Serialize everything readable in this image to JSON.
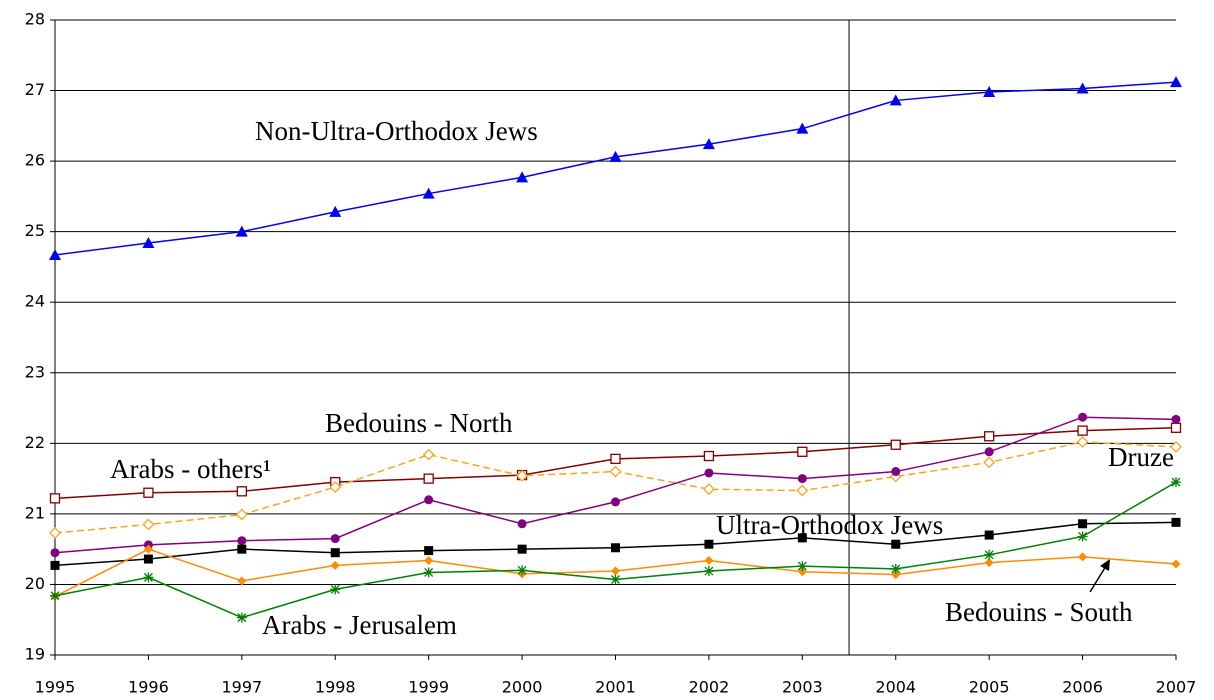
{
  "chart_data": {
    "type": "line",
    "x": [
      1995,
      1996,
      1997,
      1998,
      1999,
      2000,
      2001,
      2002,
      2003,
      2004,
      2005,
      2006,
      2007
    ],
    "xlim": [
      1995,
      2007
    ],
    "xticks": [
      1995,
      1996,
      1997,
      1998,
      1999,
      2000,
      2001,
      2002,
      2003,
      2004,
      2005,
      2006,
      2007
    ],
    "ylim": [
      19,
      28
    ],
    "yticks": [
      19,
      20,
      21,
      22,
      23,
      24,
      25,
      26,
      27,
      28
    ],
    "grid": true,
    "vline": 2003.5,
    "series": [
      {
        "name": "Non-Ultra-Orthodox Jews",
        "color": "#0000ee",
        "marker": "triangle",
        "values": [
          24.67,
          24.84,
          25.0,
          25.28,
          25.54,
          25.77,
          26.06,
          26.24,
          26.46,
          26.86,
          26.98,
          27.03,
          27.12
        ]
      },
      {
        "name": "Bedouins - North",
        "color": "#800000",
        "marker": "open-square",
        "values": [
          21.22,
          21.3,
          21.32,
          21.45,
          21.5,
          21.55,
          21.78,
          21.82,
          21.88,
          21.98,
          22.1,
          22.18,
          22.22
        ]
      },
      {
        "name": "Arabs - others¹",
        "color": "#f5a623",
        "marker": "open-diamond",
        "dashed": true,
        "values": [
          20.73,
          20.85,
          20.99,
          21.38,
          21.84,
          21.54,
          21.6,
          21.35,
          21.33,
          21.53,
          21.73,
          22.02,
          21.95
        ]
      },
      {
        "name": "Druze",
        "color": "#800080",
        "marker": "circle",
        "values": [
          20.45,
          20.56,
          20.62,
          20.65,
          21.2,
          20.86,
          21.17,
          21.58,
          21.5,
          21.6,
          21.88,
          22.37,
          22.34
        ]
      },
      {
        "name": "Ultra-Orthodox Jews",
        "color": "#000000",
        "marker": "square",
        "values": [
          20.27,
          20.36,
          20.5,
          20.45,
          20.48,
          20.5,
          20.52,
          20.57,
          20.66,
          20.57,
          20.7,
          20.86,
          20.88
        ]
      },
      {
        "name": "Bedouins - South",
        "color": "#ff8c00",
        "marker": "diamond",
        "values": [
          19.83,
          20.5,
          20.05,
          20.27,
          20.34,
          20.15,
          20.19,
          20.34,
          20.18,
          20.14,
          20.31,
          20.39,
          20.29
        ]
      },
      {
        "name": "Arabs - Jerusalem",
        "color": "#008000",
        "marker": "asterisk",
        "values": [
          19.84,
          20.1,
          19.53,
          19.93,
          20.17,
          20.2,
          20.07,
          20.19,
          20.26,
          20.22,
          20.42,
          20.68,
          21.45
        ]
      }
    ]
  }
}
